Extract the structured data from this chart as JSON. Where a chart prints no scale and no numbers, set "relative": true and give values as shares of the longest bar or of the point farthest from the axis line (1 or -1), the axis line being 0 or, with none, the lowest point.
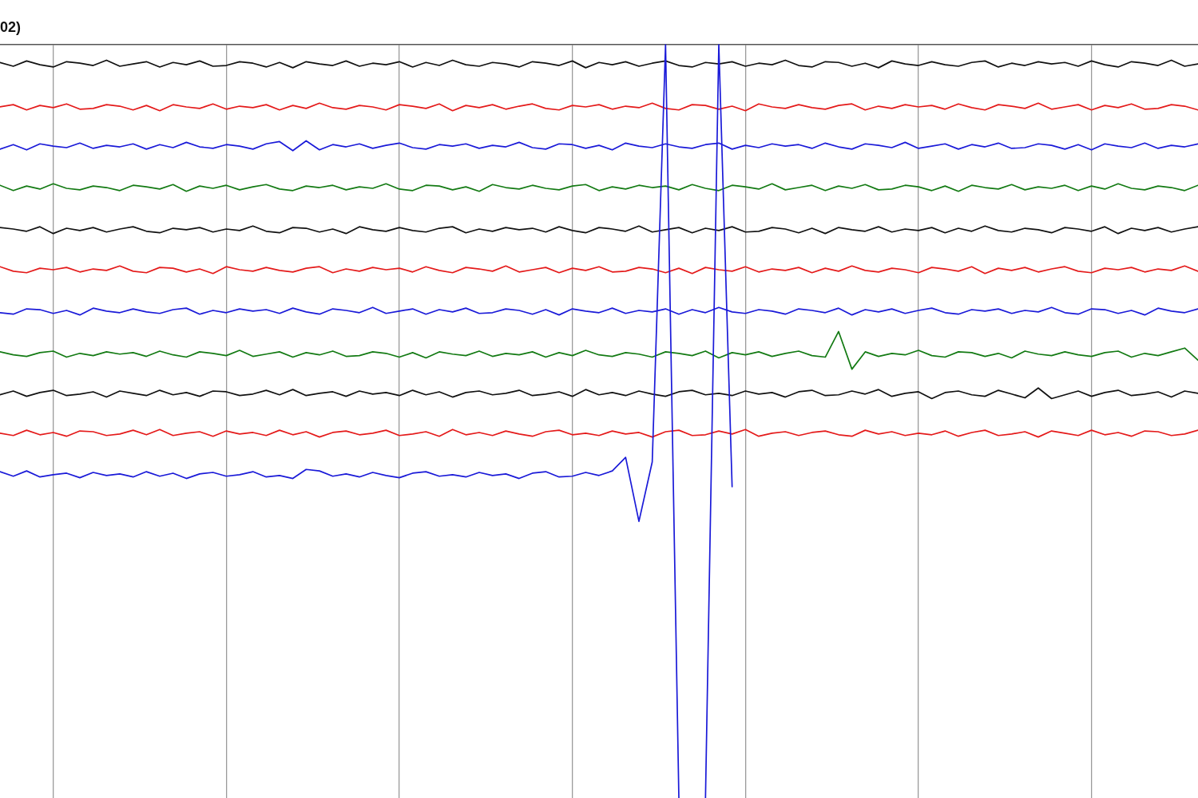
{
  "chart_data": {
    "type": "line",
    "title": "02)",
    "relative": true,
    "grid": "x",
    "tick_labels": false,
    "categories": [
      null,
      null,
      null,
      null,
      null,
      null,
      null,
      null,
      null,
      null,
      null,
      null,
      null,
      null,
      null,
      null,
      null,
      null,
      null,
      null,
      null,
      null,
      null,
      null,
      null,
      null,
      null,
      null,
      null,
      null,
      null,
      null,
      null,
      null,
      null,
      null,
      null,
      null,
      null,
      null,
      null,
      null,
      null,
      null,
      null,
      null,
      null,
      null,
      null,
      null,
      null,
      null,
      null,
      null,
      null,
      null,
      null,
      null,
      null,
      null,
      null,
      null,
      null,
      null,
      null,
      null,
      null,
      null,
      null,
      null,
      null,
      null,
      null,
      null,
      null,
      null,
      null,
      null,
      null,
      null,
      null,
      null,
      null,
      null,
      null,
      null,
      null,
      null,
      null,
      null,
      null
    ],
    "series": [
      {
        "color": "#111111",
        "values": [
          0.976,
          0.971,
          0.978,
          0.973,
          0.97,
          0.977,
          0.975,
          0.972,
          0.979,
          0.971,
          0.974,
          0.977,
          0.97,
          0.976,
          0.973,
          0.978,
          0.971,
          0.972,
          0.977,
          0.975,
          0.97,
          0.976,
          0.969,
          0.977,
          0.974,
          0.972,
          0.978,
          0.971,
          0.975,
          0.973,
          0.977,
          0.97,
          0.976,
          0.972,
          0.979,
          0.973,
          0.971,
          0.976,
          0.974,
          0.97,
          0.977,
          0.975,
          0.972,
          0.978,
          0.969,
          0.976,
          0.973,
          0.977,
          0.971,
          0.975,
          0.978,
          0.972,
          0.97,
          0.976,
          0.974,
          0.977,
          0.971,
          0.975,
          0.973,
          0.979,
          0.972,
          0.97,
          0.977,
          0.976,
          0.971,
          0.975,
          0.969,
          0.978,
          0.974,
          0.972,
          0.977,
          0.973,
          0.971,
          0.976,
          0.978,
          0.97,
          0.975,
          0.972,
          0.977,
          0.974,
          0.976,
          0.971,
          0.978,
          0.973,
          0.97,
          0.977,
          0.975,
          0.972,
          0.979,
          0.971,
          0.974
        ]
      },
      {
        "color": "#e41a1a",
        "values": [
          0.917,
          0.92,
          0.913,
          0.919,
          0.916,
          0.921,
          0.914,
          0.915,
          0.92,
          0.918,
          0.913,
          0.919,
          0.912,
          0.92,
          0.917,
          0.915,
          0.921,
          0.914,
          0.918,
          0.916,
          0.92,
          0.913,
          0.919,
          0.915,
          0.922,
          0.916,
          0.914,
          0.919,
          0.917,
          0.913,
          0.92,
          0.918,
          0.915,
          0.921,
          0.912,
          0.919,
          0.916,
          0.92,
          0.914,
          0.918,
          0.921,
          0.915,
          0.913,
          0.919,
          0.917,
          0.92,
          0.914,
          0.918,
          0.916,
          0.922,
          0.915,
          0.913,
          0.92,
          0.919,
          0.914,
          0.918,
          0.912,
          0.921,
          0.917,
          0.915,
          0.92,
          0.916,
          0.914,
          0.919,
          0.921,
          0.913,
          0.918,
          0.915,
          0.92,
          0.917,
          0.919,
          0.914,
          0.921,
          0.916,
          0.913,
          0.92,
          0.918,
          0.915,
          0.922,
          0.914,
          0.917,
          0.92,
          0.913,
          0.919,
          0.916,
          0.921,
          0.914,
          0.915,
          0.92,
          0.918,
          0.913
        ]
      },
      {
        "color": "#1a1ad8",
        "values": [
          0.861,
          0.867,
          0.86,
          0.868,
          0.865,
          0.863,
          0.869,
          0.862,
          0.866,
          0.864,
          0.868,
          0.861,
          0.867,
          0.863,
          0.87,
          0.864,
          0.862,
          0.867,
          0.865,
          0.861,
          0.868,
          0.871,
          0.859,
          0.872,
          0.86,
          0.867,
          0.864,
          0.868,
          0.862,
          0.866,
          0.869,
          0.863,
          0.861,
          0.867,
          0.865,
          0.868,
          0.862,
          0.866,
          0.864,
          0.87,
          0.863,
          0.861,
          0.868,
          0.867,
          0.862,
          0.866,
          0.86,
          0.869,
          0.865,
          0.863,
          0.868,
          0.864,
          0.862,
          0.867,
          0.869,
          0.861,
          0.866,
          0.863,
          0.868,
          0.865,
          0.867,
          0.862,
          0.869,
          0.864,
          0.861,
          0.868,
          0.866,
          0.863,
          0.87,
          0.862,
          0.865,
          0.868,
          0.861,
          0.867,
          0.864,
          0.869,
          0.862,
          0.863,
          0.868,
          0.866,
          0.861,
          0.867,
          0.86,
          0.868,
          0.865,
          0.863,
          0.869,
          0.862,
          0.866,
          0.864,
          0.868
        ]
      },
      {
        "color": "#137a13",
        "values": [
          0.813,
          0.806,
          0.812,
          0.808,
          0.815,
          0.809,
          0.807,
          0.812,
          0.81,
          0.806,
          0.813,
          0.811,
          0.808,
          0.814,
          0.805,
          0.812,
          0.809,
          0.813,
          0.807,
          0.811,
          0.814,
          0.808,
          0.806,
          0.812,
          0.81,
          0.813,
          0.807,
          0.811,
          0.809,
          0.815,
          0.808,
          0.806,
          0.813,
          0.812,
          0.807,
          0.811,
          0.805,
          0.814,
          0.81,
          0.808,
          0.813,
          0.809,
          0.807,
          0.812,
          0.814,
          0.806,
          0.811,
          0.808,
          0.813,
          0.81,
          0.812,
          0.807,
          0.814,
          0.809,
          0.806,
          0.813,
          0.811,
          0.808,
          0.815,
          0.807,
          0.81,
          0.813,
          0.806,
          0.812,
          0.809,
          0.814,
          0.807,
          0.808,
          0.813,
          0.811,
          0.806,
          0.812,
          0.805,
          0.813,
          0.81,
          0.808,
          0.814,
          0.807,
          0.811,
          0.809,
          0.813,
          0.806,
          0.812,
          0.808,
          0.815,
          0.809,
          0.807,
          0.812,
          0.81,
          0.806,
          0.813
        ]
      },
      {
        "color": "#111111",
        "values": [
          0.757,
          0.755,
          0.752,
          0.758,
          0.749,
          0.756,
          0.753,
          0.757,
          0.751,
          0.755,
          0.758,
          0.752,
          0.75,
          0.756,
          0.754,
          0.757,
          0.751,
          0.755,
          0.753,
          0.759,
          0.752,
          0.75,
          0.757,
          0.756,
          0.751,
          0.755,
          0.749,
          0.758,
          0.754,
          0.752,
          0.757,
          0.753,
          0.751,
          0.756,
          0.758,
          0.75,
          0.755,
          0.752,
          0.757,
          0.754,
          0.756,
          0.751,
          0.758,
          0.753,
          0.75,
          0.757,
          0.755,
          0.752,
          0.759,
          0.751,
          0.754,
          0.757,
          0.75,
          0.756,
          0.753,
          0.758,
          0.751,
          0.752,
          0.757,
          0.755,
          0.75,
          0.756,
          0.749,
          0.757,
          0.754,
          0.752,
          0.758,
          0.751,
          0.755,
          0.753,
          0.757,
          0.75,
          0.756,
          0.752,
          0.759,
          0.753,
          0.751,
          0.756,
          0.754,
          0.75,
          0.757,
          0.755,
          0.752,
          0.758,
          0.749,
          0.756,
          0.753,
          0.757,
          0.751,
          0.755,
          0.758
        ]
      },
      {
        "color": "#e41a1a",
        "values": [
          0.705,
          0.699,
          0.697,
          0.703,
          0.701,
          0.704,
          0.698,
          0.702,
          0.7,
          0.706,
          0.699,
          0.697,
          0.704,
          0.703,
          0.698,
          0.702,
          0.696,
          0.705,
          0.701,
          0.699,
          0.704,
          0.7,
          0.698,
          0.703,
          0.705,
          0.697,
          0.702,
          0.699,
          0.704,
          0.701,
          0.703,
          0.698,
          0.705,
          0.7,
          0.697,
          0.704,
          0.702,
          0.699,
          0.706,
          0.698,
          0.701,
          0.704,
          0.697,
          0.703,
          0.7,
          0.705,
          0.698,
          0.699,
          0.704,
          0.702,
          0.697,
          0.703,
          0.696,
          0.704,
          0.701,
          0.699,
          0.705,
          0.698,
          0.702,
          0.7,
          0.704,
          0.697,
          0.703,
          0.699,
          0.706,
          0.7,
          0.698,
          0.703,
          0.701,
          0.697,
          0.704,
          0.702,
          0.699,
          0.705,
          0.696,
          0.703,
          0.7,
          0.704,
          0.698,
          0.702,
          0.705,
          0.699,
          0.697,
          0.703,
          0.701,
          0.704,
          0.698,
          0.702,
          0.7,
          0.706,
          0.699
        ]
      },
      {
        "color": "#1a1ad8",
        "values": [
          0.644,
          0.642,
          0.649,
          0.648,
          0.643,
          0.647,
          0.641,
          0.65,
          0.646,
          0.644,
          0.649,
          0.645,
          0.643,
          0.648,
          0.65,
          0.642,
          0.647,
          0.644,
          0.649,
          0.646,
          0.648,
          0.643,
          0.65,
          0.645,
          0.642,
          0.649,
          0.647,
          0.644,
          0.651,
          0.643,
          0.646,
          0.649,
          0.642,
          0.648,
          0.645,
          0.65,
          0.643,
          0.644,
          0.649,
          0.647,
          0.642,
          0.648,
          0.641,
          0.649,
          0.646,
          0.644,
          0.65,
          0.643,
          0.647,
          0.645,
          0.649,
          0.642,
          0.648,
          0.644,
          0.651,
          0.645,
          0.643,
          0.648,
          0.646,
          0.642,
          0.649,
          0.647,
          0.644,
          0.65,
          0.641,
          0.648,
          0.645,
          0.649,
          0.643,
          0.647,
          0.65,
          0.644,
          0.642,
          0.648,
          0.646,
          0.649,
          0.643,
          0.647,
          0.645,
          0.651,
          0.644,
          0.642,
          0.649,
          0.648,
          0.643,
          0.647,
          0.641,
          0.65,
          0.646,
          0.644,
          0.649
        ]
      },
      {
        "color": "#137a13",
        "values": [
          0.592,
          0.588,
          0.586,
          0.591,
          0.593,
          0.585,
          0.59,
          0.587,
          0.592,
          0.589,
          0.591,
          0.586,
          0.593,
          0.588,
          0.585,
          0.592,
          0.59,
          0.587,
          0.594,
          0.586,
          0.589,
          0.592,
          0.585,
          0.591,
          0.588,
          0.593,
          0.586,
          0.587,
          0.592,
          0.59,
          0.585,
          0.591,
          0.584,
          0.592,
          0.589,
          0.587,
          0.593,
          0.586,
          0.59,
          0.588,
          0.592,
          0.585,
          0.591,
          0.587,
          0.594,
          0.588,
          0.586,
          0.591,
          0.589,
          0.585,
          0.592,
          0.59,
          0.587,
          0.593,
          0.584,
          0.591,
          0.588,
          0.592,
          0.586,
          0.59,
          0.593,
          0.587,
          0.585,
          0.619,
          0.569,
          0.592,
          0.586,
          0.59,
          0.588,
          0.594,
          0.587,
          0.585,
          0.592,
          0.591,
          0.586,
          0.59,
          0.584,
          0.593,
          0.589,
          0.587,
          0.592,
          0.588,
          0.586,
          0.591,
          0.593,
          0.585,
          0.59,
          0.587,
          0.592,
          0.597,
          0.581
        ]
      },
      {
        "color": "#111111",
        "values": [
          0.535,
          0.54,
          0.533,
          0.538,
          0.541,
          0.534,
          0.536,
          0.539,
          0.532,
          0.54,
          0.537,
          0.534,
          0.541,
          0.535,
          0.538,
          0.533,
          0.54,
          0.539,
          0.534,
          0.536,
          0.541,
          0.535,
          0.542,
          0.534,
          0.537,
          0.539,
          0.533,
          0.54,
          0.536,
          0.538,
          0.534,
          0.541,
          0.535,
          0.539,
          0.532,
          0.538,
          0.54,
          0.535,
          0.537,
          0.541,
          0.534,
          0.536,
          0.539,
          0.533,
          0.542,
          0.535,
          0.538,
          0.534,
          0.54,
          0.536,
          0.533,
          0.539,
          0.541,
          0.535,
          0.537,
          0.534,
          0.54,
          0.536,
          0.538,
          0.532,
          0.539,
          0.541,
          0.534,
          0.535,
          0.54,
          0.536,
          0.542,
          0.533,
          0.537,
          0.539,
          0.53,
          0.538,
          0.54,
          0.535,
          0.533,
          0.541,
          0.536,
          0.531,
          0.544,
          0.53,
          0.535,
          0.54,
          0.533,
          0.538,
          0.541,
          0.534,
          0.536,
          0.539,
          0.532,
          0.54,
          0.537
        ]
      },
      {
        "color": "#e41a1a",
        "values": [
          0.484,
          0.481,
          0.488,
          0.482,
          0.485,
          0.48,
          0.487,
          0.486,
          0.481,
          0.483,
          0.488,
          0.482,
          0.489,
          0.481,
          0.484,
          0.486,
          0.48,
          0.487,
          0.483,
          0.485,
          0.481,
          0.488,
          0.482,
          0.486,
          0.479,
          0.485,
          0.487,
          0.482,
          0.484,
          0.488,
          0.481,
          0.483,
          0.486,
          0.48,
          0.489,
          0.482,
          0.485,
          0.481,
          0.487,
          0.483,
          0.48,
          0.486,
          0.488,
          0.482,
          0.484,
          0.481,
          0.487,
          0.483,
          0.485,
          0.479,
          0.486,
          0.488,
          0.481,
          0.482,
          0.487,
          0.483,
          0.489,
          0.48,
          0.484,
          0.486,
          0.481,
          0.485,
          0.487,
          0.482,
          0.48,
          0.488,
          0.483,
          0.486,
          0.481,
          0.484,
          0.482,
          0.487,
          0.48,
          0.485,
          0.488,
          0.481,
          0.483,
          0.486,
          0.479,
          0.487,
          0.484,
          0.481,
          0.488,
          0.482,
          0.485,
          0.48,
          0.487,
          0.486,
          0.481,
          0.483,
          0.488
        ]
      },
      {
        "color": "#1a1ad8",
        "values": [
          0.433,
          0.427,
          0.434,
          0.426,
          0.429,
          0.431,
          0.425,
          0.432,
          0.428,
          0.43,
          0.426,
          0.433,
          0.427,
          0.431,
          0.424,
          0.43,
          0.432,
          0.427,
          0.429,
          0.433,
          0.426,
          0.428,
          0.424,
          0.436,
          0.434,
          0.427,
          0.43,
          0.426,
          0.432,
          0.428,
          0.425,
          0.431,
          0.433,
          0.427,
          0.429,
          0.426,
          0.432,
          0.428,
          0.43,
          0.424,
          0.431,
          0.433,
          0.426,
          0.427,
          0.432,
          0.428,
          0.434,
          0.452,
          0.367,
          0.446,
          1,
          0,
          null,
          0,
          1,
          0.413,
          null,
          null,
          null,
          null,
          null,
          null,
          null,
          null,
          null,
          null,
          null,
          null,
          null,
          null,
          null,
          null,
          null,
          null,
          null,
          null,
          null,
          null,
          null,
          null,
          null,
          null,
          null,
          null,
          null,
          null,
          null,
          null,
          null,
          null,
          null
        ]
      }
    ]
  }
}
